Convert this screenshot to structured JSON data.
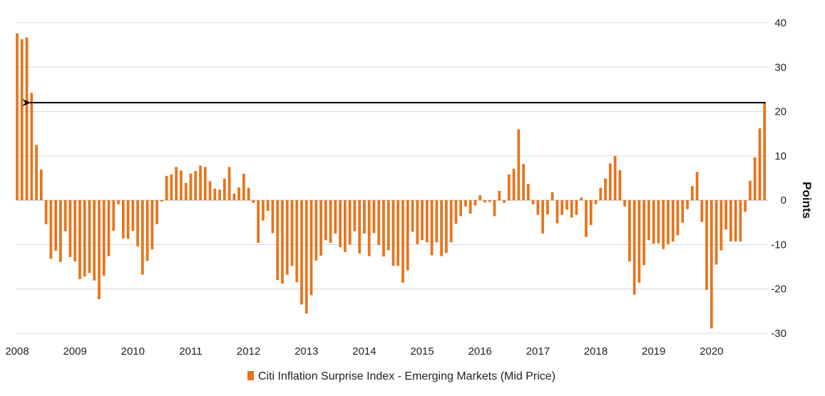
{
  "chart_data": {
    "type": "bar",
    "ylabel": "Points",
    "ylim": [
      -30,
      40
    ],
    "yticks": [
      -30,
      -20,
      -10,
      0,
      10,
      20,
      30,
      40
    ],
    "xlim": [
      2008,
      2021
    ],
    "xticks": [
      "2008",
      "2009",
      "2010",
      "2011",
      "2012",
      "2013",
      "2014",
      "2015",
      "2016",
      "2017",
      "2018",
      "2019",
      "2020"
    ],
    "grid": "horizontal",
    "legend_position": "bottom-center",
    "bar_color": "#E8731A",
    "arrow": {
      "from_x": 2020.96,
      "to_x": 2008.25,
      "y": 22,
      "color": "#000000"
    },
    "series": [
      {
        "name": "Citi Inflation Surprise Index - Emerging Markets (Mid Price)",
        "x_start": 2008.0,
        "x_step": 0.08333,
        "values": [
          37.6,
          36.3,
          36.7,
          24.2,
          12.5,
          6.9,
          -5.4,
          -13.2,
          -11.4,
          -13.9,
          -7.0,
          -12.8,
          -13.8,
          -17.8,
          -17.2,
          -16.4,
          -18.1,
          -22.3,
          -17.0,
          -12.6,
          -6.9,
          -0.9,
          -8.6,
          -8.7,
          -6.9,
          -10.4,
          -16.8,
          -13.7,
          -11.1,
          -5.4,
          -0.3,
          5.5,
          5.8,
          7.5,
          6.7,
          3.9,
          6.0,
          6.6,
          7.8,
          7.5,
          4.3,
          2.6,
          2.4,
          4.9,
          7.5,
          1.5,
          2.9,
          6.0,
          2.8,
          -0.6,
          -9.6,
          -4.6,
          -2.4,
          -7.4,
          -18.0,
          -18.8,
          -16.8,
          -14.8,
          -18.5,
          -23.5,
          -25.5,
          -21.4,
          -13.6,
          -12.5,
          -9.0,
          -9.6,
          -7.5,
          -10.6,
          -11.7,
          -10.0,
          -7.0,
          -12.0,
          -7.5,
          -12.6,
          -7.4,
          -10.1,
          -12.7,
          -11.3,
          -14.8,
          -14.8,
          -18.6,
          -15.8,
          -7.1,
          -9.9,
          -9.0,
          -9.5,
          -12.4,
          -9.5,
          -12.6,
          -11.9,
          -9.5,
          -5.3,
          -3.6,
          -1.4,
          -3.0,
          -1.2,
          1.1,
          -0.5,
          -0.4,
          -3.6,
          2.1,
          -0.6,
          5.8,
          7.1,
          16.0,
          8.2,
          3.7,
          -0.9,
          -3.3,
          -7.5,
          -3.2,
          1.8,
          -5.2,
          -3.3,
          -2.1,
          -3.9,
          -3.3,
          0.6,
          -8.3,
          -5.6,
          -0.9,
          2.8,
          4.9,
          8.3,
          10.0,
          6.8,
          -1.4,
          -13.8,
          -21.3,
          -18.6,
          -14.6,
          -9.0,
          -9.8,
          -9.7,
          -11.0,
          -9.9,
          -9.3,
          -7.9,
          -5.1,
          -2.0,
          3.2,
          6.4,
          -4.9,
          -20.2,
          -28.9,
          -14.5,
          -11.3,
          -6.6,
          -9.3,
          -9.3,
          -9.3,
          -2.6,
          4.4,
          9.7,
          16.2,
          22.0
        ]
      }
    ]
  }
}
